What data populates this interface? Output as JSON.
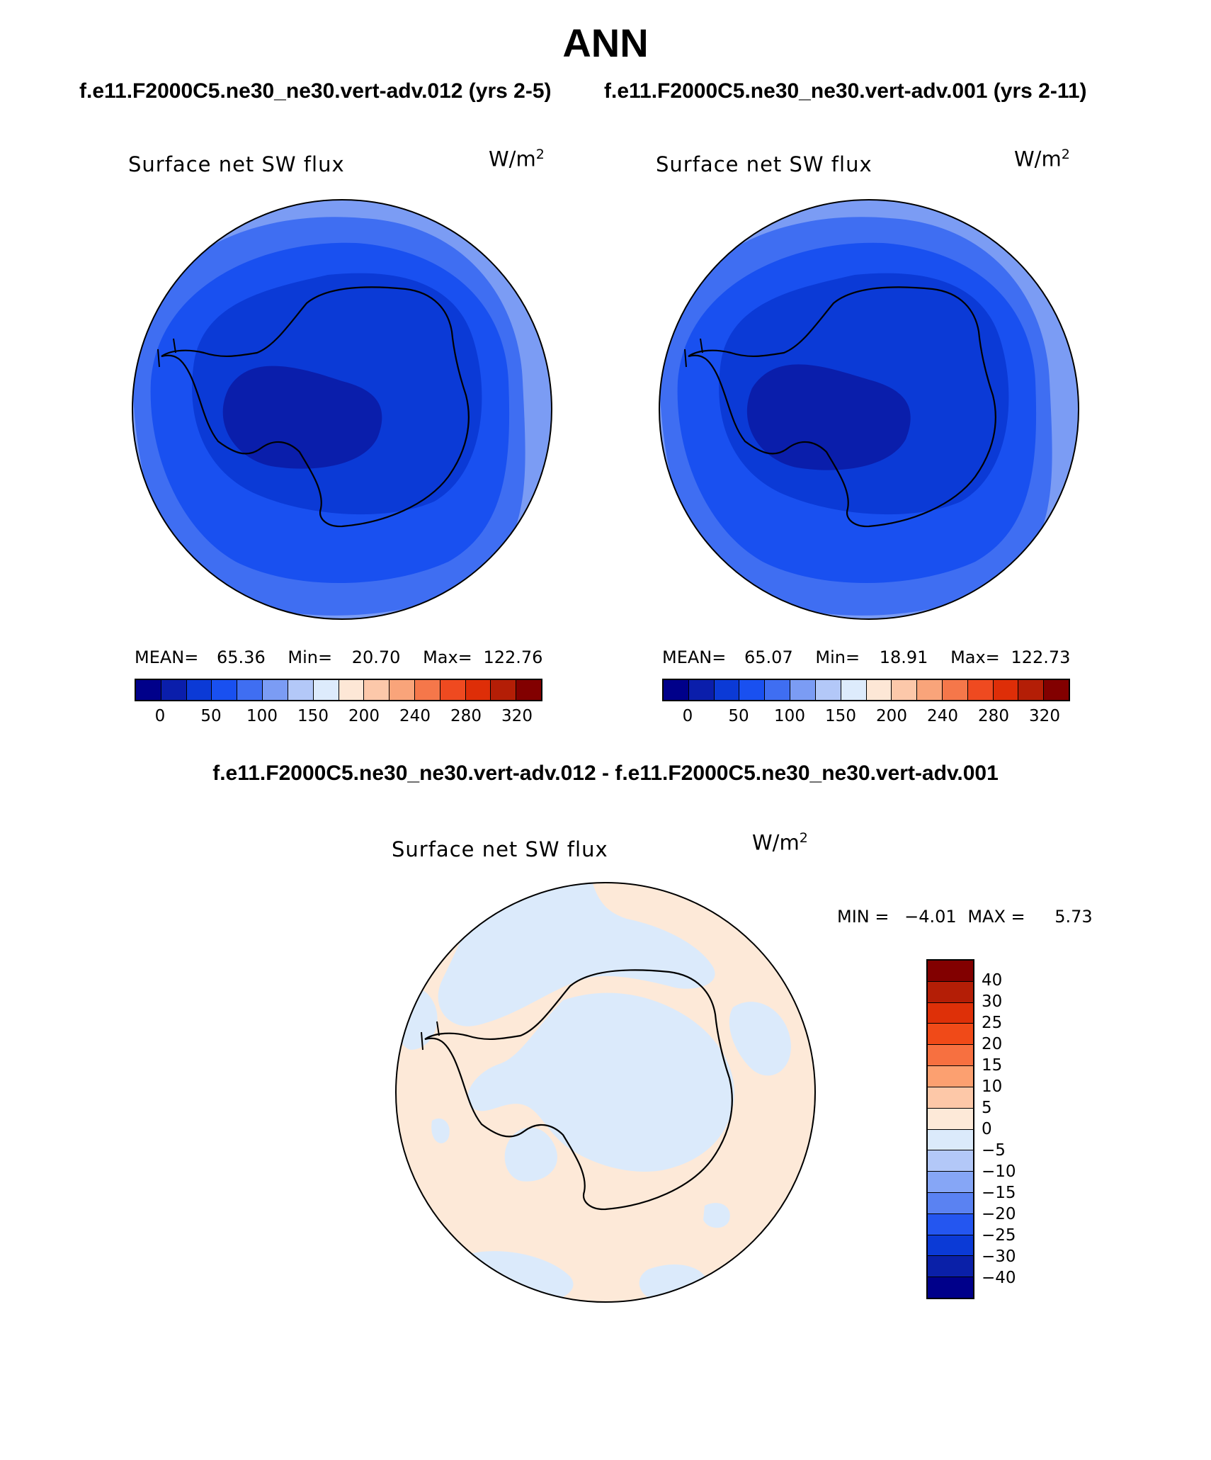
{
  "title": "ANN",
  "case_titles": {
    "test": "f.e11.F2000C5.ne30_ne30.vert-adv.012 (yrs 2-5)",
    "control": "f.e11.F2000C5.ne30_ne30.vert-adv.001 (yrs 2-11)"
  },
  "diff_title": "f.e11.F2000C5.ne30_ne30.vert-adv.012 - f.e11.F2000C5.ne30_ne30.vert-adv.001",
  "panels": [
    {
      "variable": "Surface net SW flux",
      "units_base": "W/m",
      "units_exp": "2",
      "mean_label": "MEAN=",
      "mean": "65.36",
      "min_label": "Min=",
      "min": "20.70",
      "max_label": "Max=",
      "max": "122.76"
    },
    {
      "variable": "Surface net SW flux",
      "units_base": "W/m",
      "units_exp": "2",
      "mean_label": "MEAN=",
      "mean": "65.07",
      "min_label": "Min=",
      "min": "18.91",
      "max_label": "Max=",
      "max": "122.73"
    }
  ],
  "diff_panel": {
    "variable": "Surface net SW flux",
    "units_base": "W/m",
    "units_exp": "2",
    "min_label": "MIN =",
    "min": "−4.01",
    "max_label": "MAX =",
    "max": "5.73"
  },
  "abs_colorbar": {
    "colors": [
      "#00008a",
      "#0a1eab",
      "#0b3ad6",
      "#1950f0",
      "#3f6ef2",
      "#7b9cf4",
      "#b3c8f8",
      "#ddebfc",
      "#fde7d6",
      "#fcc8aa",
      "#f9a47a",
      "#f5774a",
      "#ef4a20",
      "#de2e08",
      "#b41e06",
      "#820000"
    ],
    "ticks": [
      "0",
      "50",
      "100",
      "150",
      "200",
      "240",
      "280",
      "320"
    ]
  },
  "diff_colorbar": {
    "colors": [
      "#820000",
      "#b41e06",
      "#de3008",
      "#f04a18",
      "#f77040",
      "#fca070",
      "#fdc8a8",
      "#fde9d8",
      "#dbeafb",
      "#b3c8f8",
      "#86a6f6",
      "#5a82f2",
      "#2456f0",
      "#0b3ad6",
      "#0a20a8",
      "#00008a"
    ],
    "ticks": [
      "40",
      "30",
      "25",
      "20",
      "15",
      "10",
      "5",
      "0",
      "−5",
      "−10",
      "−15",
      "−20",
      "−25",
      "−30",
      "−40"
    ]
  },
  "map_colors": {
    "ring_outer": "#7b9cf4",
    "ring_mid": "#3f6ef2",
    "inner": "#1950f0",
    "shelf": "#0b3ad6",
    "deep": "#0a1eab",
    "diff_pos": "#fde9d8",
    "diff_neg": "#dbeafb"
  }
}
